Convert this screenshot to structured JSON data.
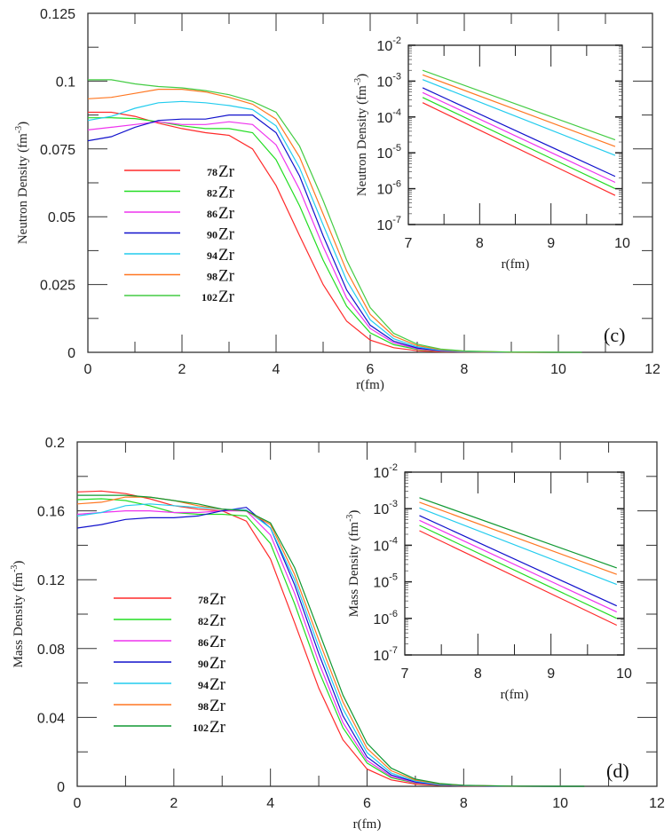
{
  "chart_data": [
    {
      "id": "c",
      "type": "line",
      "panel_label": "(c)",
      "title": "",
      "xlabel": "r(fm)",
      "ylabel": "Neutron Density (fm",
      "ylabel_sup": "-3",
      "ylabel_tail": ")",
      "xlim": [
        0,
        12
      ],
      "ylim": [
        0,
        0.125
      ],
      "xticks": [
        "0",
        "2",
        "4",
        "6",
        "8",
        "10",
        "12"
      ],
      "yticks": [
        "0",
        "0.025",
        "0.05",
        "0.075",
        "0.1",
        "0.125"
      ],
      "ytick_values": [
        0,
        0.025,
        0.05,
        0.075,
        0.1,
        0.125
      ],
      "legend_position": "left-center",
      "grid": false,
      "x": [
        0,
        0.5,
        1,
        1.5,
        2,
        2.5,
        3,
        3.5,
        4,
        4.5,
        5,
        5.5,
        6,
        6.5,
        7,
        7.5,
        8,
        9,
        10,
        10.5
      ],
      "series": [
        {
          "name": "78Zr",
          "mass": "78",
          "color": "#ff2a2a",
          "values": [
            0.0885,
            0.0885,
            0.087,
            0.0845,
            0.0825,
            0.081,
            0.08,
            0.075,
            0.0615,
            0.043,
            0.025,
            0.0115,
            0.0045,
            0.0017,
            0.0006,
            0.0002,
            0.0001,
            2e-05,
            0.0,
            0.0
          ]
        },
        {
          "name": "82Zr",
          "mass": "82",
          "color": "#22dd22",
          "values": [
            0.0865,
            0.0865,
            0.0862,
            0.085,
            0.0835,
            0.0825,
            0.0825,
            0.081,
            0.071,
            0.054,
            0.034,
            0.017,
            0.0072,
            0.0028,
            0.0011,
            0.0004,
            0.00015,
            3e-05,
            0.0,
            0.0
          ]
        },
        {
          "name": "86Zr",
          "mass": "86",
          "color": "#ee33ee",
          "values": [
            0.082,
            0.083,
            0.084,
            0.085,
            0.084,
            0.084,
            0.085,
            0.084,
            0.0765,
            0.06,
            0.039,
            0.02,
            0.0088,
            0.0035,
            0.0013,
            0.0005,
            0.0002,
            4e-05,
            0.0,
            0.0
          ]
        },
        {
          "name": "90Zr",
          "mass": "90",
          "color": "#1111cc",
          "values": [
            0.078,
            0.0795,
            0.083,
            0.0855,
            0.086,
            0.086,
            0.0875,
            0.0875,
            0.081,
            0.065,
            0.043,
            0.023,
            0.01,
            0.0041,
            0.0016,
            0.0006,
            0.00025,
            5e-05,
            0.0,
            0.0
          ]
        },
        {
          "name": "94Zr",
          "mass": "94",
          "color": "#22ccee",
          "values": [
            0.0855,
            0.087,
            0.09,
            0.092,
            0.0925,
            0.092,
            0.091,
            0.0895,
            0.0835,
            0.068,
            0.047,
            0.0265,
            0.012,
            0.005,
            0.002,
            0.0008,
            0.0003,
            6e-05,
            0.0,
            0.0
          ]
        },
        {
          "name": "98Zr",
          "mass": "98",
          "color": "#ff7722",
          "values": [
            0.0935,
            0.094,
            0.0955,
            0.097,
            0.097,
            0.096,
            0.094,
            0.0915,
            0.086,
            0.072,
            0.051,
            0.03,
            0.014,
            0.006,
            0.0025,
            0.001,
            0.0004,
            8e-05,
            1e-05,
            0.0
          ]
        },
        {
          "name": "102Zr",
          "mass": "102",
          "color": "#44cc44",
          "values": [
            0.1005,
            0.1005,
            0.099,
            0.098,
            0.0975,
            0.0965,
            0.095,
            0.0925,
            0.0885,
            0.076,
            0.056,
            0.034,
            0.0165,
            0.007,
            0.003,
            0.0012,
            0.0005,
            0.0001,
            2e-05,
            0.0
          ]
        }
      ],
      "inset": {
        "type": "line",
        "yscale": "log",
        "xlabel": "r(fm)",
        "ylabel": "Neutron Density (fm",
        "ylabel_sup": "-3",
        "ylabel_tail": ")",
        "xlim": [
          7,
          10
        ],
        "ylim": [
          1e-07,
          0.01
        ],
        "xticks": [
          "7",
          "8",
          "9",
          "10"
        ],
        "yticks": [
          {
            "base": "10",
            "exp": "-7",
            "value": 1e-07
          },
          {
            "base": "10",
            "exp": "-6",
            "value": 1e-06
          },
          {
            "base": "10",
            "exp": "-5",
            "value": 1e-05
          },
          {
            "base": "10",
            "exp": "-4",
            "value": 0.0001
          },
          {
            "base": "10",
            "exp": "-3",
            "value": 0.001
          },
          {
            "base": "10",
            "exp": "-2",
            "value": 0.01
          }
        ],
        "x": [
          7.2,
          9.9
        ],
        "series": [
          {
            "name": "78Zr",
            "values": [
              0.00025,
              6.5e-07
            ]
          },
          {
            "name": "82Zr",
            "values": [
              0.00035,
              1e-06
            ]
          },
          {
            "name": "86Zr",
            "values": [
              0.00048,
              1.5e-06
            ]
          },
          {
            "name": "90Zr",
            "values": [
              0.00065,
              2.2e-06
            ]
          },
          {
            "name": "94Zr",
            "values": [
              0.0011,
              8.5e-06
            ]
          },
          {
            "name": "98Zr",
            "values": [
              0.0015,
              1.5e-05
            ]
          },
          {
            "name": "102Zr",
            "values": [
              0.002,
              2.3e-05
            ]
          }
        ]
      }
    },
    {
      "id": "d",
      "type": "line",
      "panel_label": "(d)",
      "title": "",
      "xlabel": "r(fm)",
      "ylabel": "Mass Density (fm",
      "ylabel_sup": "-3",
      "ylabel_tail": ")",
      "xlim": [
        0,
        12
      ],
      "ylim": [
        0,
        0.2
      ],
      "xticks": [
        "0",
        "2",
        "4",
        "6",
        "8",
        "10",
        "12"
      ],
      "yticks": [
        "0",
        "0.04",
        "0.08",
        "0.12",
        "0.16",
        "0.2"
      ],
      "ytick_values": [
        0,
        0.04,
        0.08,
        0.12,
        0.16,
        0.2
      ],
      "legend_position": "left-center",
      "grid": false,
      "x": [
        0,
        0.5,
        1,
        1.5,
        2,
        2.5,
        3,
        3.5,
        4,
        4.5,
        5,
        5.5,
        6,
        6.5,
        7,
        7.5,
        8,
        9,
        10,
        10.5
      ],
      "series": [
        {
          "name": "78Zr",
          "mass": "78",
          "color": "#ff2a2a",
          "values": [
            0.171,
            0.1715,
            0.17,
            0.167,
            0.163,
            0.161,
            0.16,
            0.154,
            0.132,
            0.095,
            0.057,
            0.027,
            0.01,
            0.0037,
            0.0013,
            0.0005,
            0.0002,
            3e-05,
            0.0,
            0.0
          ]
        },
        {
          "name": "82Zr",
          "mass": "82",
          "color": "#22dd22",
          "values": [
            0.1665,
            0.167,
            0.166,
            0.163,
            0.159,
            0.158,
            0.158,
            0.157,
            0.141,
            0.106,
            0.067,
            0.034,
            0.0135,
            0.005,
            0.0019,
            0.0007,
            0.0003,
            5e-05,
            0.0,
            0.0
          ]
        },
        {
          "name": "86Zr",
          "mass": "86",
          "color": "#ee33ee",
          "values": [
            0.158,
            0.159,
            0.16,
            0.16,
            0.159,
            0.159,
            0.16,
            0.16,
            0.146,
            0.112,
            0.072,
            0.037,
            0.015,
            0.0057,
            0.0021,
            0.0008,
            0.0003,
            6e-05,
            0.0,
            0.0
          ]
        },
        {
          "name": "90Zr",
          "mass": "90",
          "color": "#1111cc",
          "values": [
            0.15,
            0.152,
            0.155,
            0.156,
            0.156,
            0.157,
            0.16,
            0.162,
            0.15,
            0.117,
            0.077,
            0.041,
            0.017,
            0.0066,
            0.0025,
            0.0009,
            0.0003,
            7e-05,
            0.0,
            0.0
          ]
        },
        {
          "name": "94Zr",
          "mass": "94",
          "color": "#22ccee",
          "values": [
            0.157,
            0.159,
            0.163,
            0.164,
            0.163,
            0.162,
            0.161,
            0.1605,
            0.15,
            0.12,
            0.081,
            0.045,
            0.0195,
            0.0077,
            0.003,
            0.0011,
            0.0004,
            8e-05,
            1e-05,
            0.0
          ]
        },
        {
          "name": "98Zr",
          "mass": "98",
          "color": "#ff7722",
          "values": [
            0.164,
            0.165,
            0.168,
            0.168,
            0.166,
            0.163,
            0.161,
            0.16,
            0.152,
            0.123,
            0.085,
            0.049,
            0.022,
            0.009,
            0.0036,
            0.0014,
            0.0005,
            0.0001,
            2e-05,
            0.0
          ]
        },
        {
          "name": "102Zr",
          "mass": "102",
          "color": "#119933",
          "values": [
            0.169,
            0.169,
            0.169,
            0.168,
            0.166,
            0.164,
            0.161,
            0.16,
            0.153,
            0.127,
            0.09,
            0.053,
            0.025,
            0.0105,
            0.0042,
            0.0016,
            0.0006,
            0.00012,
            2e-05,
            0.0
          ]
        }
      ],
      "inset": {
        "type": "line",
        "yscale": "log",
        "xlabel": "r(fm)",
        "ylabel": "Mass Density (fm",
        "ylabel_sup": "-3",
        "ylabel_tail": ")",
        "xlim": [
          7,
          10
        ],
        "ylim": [
          1e-07,
          0.01
        ],
        "xticks": [
          "7",
          "8",
          "9",
          "10"
        ],
        "yticks": [
          {
            "base": "10",
            "exp": "-7",
            "value": 1e-07
          },
          {
            "base": "10",
            "exp": "-6",
            "value": 1e-06
          },
          {
            "base": "10",
            "exp": "-5",
            "value": 1e-05
          },
          {
            "base": "10",
            "exp": "-4",
            "value": 0.0001
          },
          {
            "base": "10",
            "exp": "-3",
            "value": 0.001
          },
          {
            "base": "10",
            "exp": "-2",
            "value": 0.01
          }
        ],
        "x": [
          7.2,
          9.9
        ],
        "series": [
          {
            "name": "78Zr",
            "values": [
              0.00025,
              6.5e-07
            ]
          },
          {
            "name": "82Zr",
            "values": [
              0.00035,
              1e-06
            ]
          },
          {
            "name": "86Zr",
            "values": [
              0.00048,
              1.5e-06
            ]
          },
          {
            "name": "90Zr",
            "values": [
              0.00065,
              2.2e-06
            ]
          },
          {
            "name": "94Zr",
            "values": [
              0.00105,
              8.5e-06
            ]
          },
          {
            "name": "98Zr",
            "values": [
              0.0015,
              1.6e-05
            ]
          },
          {
            "name": "102Zr",
            "values": [
              0.002,
              2.4e-05
            ]
          }
        ]
      }
    }
  ]
}
